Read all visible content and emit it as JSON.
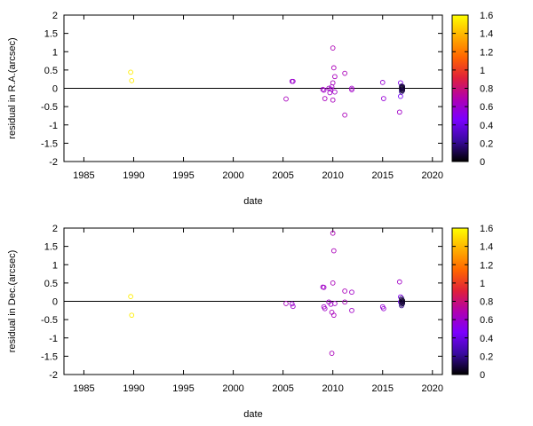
{
  "chart_data": [
    {
      "type": "scatter",
      "xlabel": "date",
      "ylabel": "residual in R.A.(arcsec)",
      "xlim": [
        1983,
        2021
      ],
      "ylim": [
        -2,
        2
      ],
      "xticks": [
        "1985",
        "1990",
        "1995",
        "2000",
        "2005",
        "2010",
        "2015",
        "2020"
      ],
      "yticks": [
        "-2",
        "-1.5",
        "-1",
        "-0.5",
        "0",
        "0.5",
        "1",
        "1.5",
        "2"
      ],
      "zero_line": true,
      "colorbar": {
        "min": 0,
        "max": 1.6,
        "ticks": [
          "0",
          "0.2",
          "0.4",
          "0.6",
          "0.8",
          "1",
          "1.2",
          "1.4",
          "1.6"
        ],
        "colormap": [
          "#000000",
          "#3a0aa0",
          "#7b00ff",
          "#b000b0",
          "#e0203a",
          "#ff6600",
          "#ffb000",
          "#ffff00"
        ]
      },
      "points": [
        {
          "x": 1989.7,
          "y": 0.44,
          "c": 1.55
        },
        {
          "x": 1989.8,
          "y": 0.21,
          "c": 1.55
        },
        {
          "x": 2005.3,
          "y": -0.29,
          "c": 0.65
        },
        {
          "x": 2005.9,
          "y": 0.19,
          "c": 0.6
        },
        {
          "x": 2006.0,
          "y": 0.19,
          "c": 0.6
        },
        {
          "x": 2009.0,
          "y": -0.03,
          "c": 0.62
        },
        {
          "x": 2009.1,
          "y": -0.05,
          "c": 0.62
        },
        {
          "x": 2009.2,
          "y": -0.28,
          "c": 0.65
        },
        {
          "x": 2009.6,
          "y": 0.0,
          "c": 0.62
        },
        {
          "x": 2009.7,
          "y": -0.12,
          "c": 0.62
        },
        {
          "x": 2009.8,
          "y": -0.02,
          "c": 0.62
        },
        {
          "x": 2009.9,
          "y": 0.04,
          "c": 0.62
        },
        {
          "x": 2010.0,
          "y": 1.1,
          "c": 0.67
        },
        {
          "x": 2010.0,
          "y": 0.15,
          "c": 0.65
        },
        {
          "x": 2010.0,
          "y": -0.32,
          "c": 0.65
        },
        {
          "x": 2010.1,
          "y": 0.56,
          "c": 0.66
        },
        {
          "x": 2010.2,
          "y": 0.32,
          "c": 0.65
        },
        {
          "x": 2010.2,
          "y": -0.1,
          "c": 0.62
        },
        {
          "x": 2011.2,
          "y": 0.41,
          "c": 0.66
        },
        {
          "x": 2011.2,
          "y": -0.73,
          "c": 0.66
        },
        {
          "x": 2011.9,
          "y": -0.04,
          "c": 0.62
        },
        {
          "x": 2011.9,
          "y": 0.0,
          "c": 0.62
        },
        {
          "x": 2015.0,
          "y": 0.16,
          "c": 0.58
        },
        {
          "x": 2015.1,
          "y": -0.28,
          "c": 0.58
        },
        {
          "x": 2016.7,
          "y": -0.65,
          "c": 0.62
        },
        {
          "x": 2016.8,
          "y": 0.15,
          "c": 0.5
        },
        {
          "x": 2016.8,
          "y": -0.22,
          "c": 0.45
        },
        {
          "x": 2016.9,
          "y": 0.06,
          "c": 0.15
        },
        {
          "x": 2016.9,
          "y": 0.03,
          "c": 0.1
        },
        {
          "x": 2016.9,
          "y": 0.0,
          "c": 0.05
        },
        {
          "x": 2016.9,
          "y": -0.03,
          "c": 0.08
        },
        {
          "x": 2016.9,
          "y": -0.06,
          "c": 0.12
        },
        {
          "x": 2016.9,
          "y": -0.1,
          "c": 0.2
        },
        {
          "x": 2017.0,
          "y": 0.02,
          "c": 0.05
        },
        {
          "x": 2017.0,
          "y": -0.02,
          "c": 0.04
        },
        {
          "x": 2017.0,
          "y": -0.06,
          "c": 0.08
        },
        {
          "x": 2017.0,
          "y": 0.05,
          "c": 0.1
        }
      ]
    },
    {
      "type": "scatter",
      "xlabel": "date",
      "ylabel": "residual in Dec.(arcsec)",
      "xlim": [
        1983,
        2021
      ],
      "ylim": [
        -2,
        2
      ],
      "xticks": [
        "1985",
        "1990",
        "1995",
        "2000",
        "2005",
        "2010",
        "2015",
        "2020"
      ],
      "yticks": [
        "-2",
        "-1.5",
        "-1",
        "-0.5",
        "0",
        "0.5",
        "1",
        "1.5",
        "2"
      ],
      "zero_line": true,
      "colorbar": {
        "min": 0,
        "max": 1.6,
        "ticks": [
          "0",
          "0.2",
          "0.4",
          "0.6",
          "0.8",
          "1",
          "1.2",
          "1.4",
          "1.6"
        ],
        "colormap": [
          "#000000",
          "#3a0aa0",
          "#7b00ff",
          "#b000b0",
          "#e0203a",
          "#ff6600",
          "#ffb000",
          "#ffff00"
        ]
      },
      "points": [
        {
          "x": 1989.7,
          "y": 0.13,
          "c": 1.55
        },
        {
          "x": 1989.8,
          "y": -0.38,
          "c": 1.55
        },
        {
          "x": 2005.3,
          "y": -0.06,
          "c": 0.65
        },
        {
          "x": 2005.9,
          "y": -0.07,
          "c": 0.6
        },
        {
          "x": 2006.0,
          "y": -0.14,
          "c": 0.6
        },
        {
          "x": 2009.0,
          "y": 0.39,
          "c": 0.62
        },
        {
          "x": 2009.1,
          "y": 0.38,
          "c": 0.62
        },
        {
          "x": 2009.1,
          "y": -0.15,
          "c": 0.62
        },
        {
          "x": 2009.2,
          "y": -0.2,
          "c": 0.62
        },
        {
          "x": 2009.6,
          "y": -0.02,
          "c": 0.62
        },
        {
          "x": 2009.8,
          "y": -0.08,
          "c": 0.62
        },
        {
          "x": 2009.9,
          "y": -0.3,
          "c": 0.65
        },
        {
          "x": 2009.9,
          "y": -1.42,
          "c": 0.66
        },
        {
          "x": 2010.0,
          "y": 1.86,
          "c": 0.67
        },
        {
          "x": 2010.0,
          "y": 0.5,
          "c": 0.66
        },
        {
          "x": 2010.1,
          "y": 1.38,
          "c": 0.66
        },
        {
          "x": 2010.1,
          "y": -0.38,
          "c": 0.65
        },
        {
          "x": 2010.2,
          "y": -0.06,
          "c": 0.62
        },
        {
          "x": 2011.2,
          "y": 0.28,
          "c": 0.66
        },
        {
          "x": 2011.2,
          "y": -0.02,
          "c": 0.66
        },
        {
          "x": 2011.9,
          "y": 0.25,
          "c": 0.62
        },
        {
          "x": 2011.9,
          "y": -0.25,
          "c": 0.62
        },
        {
          "x": 2015.0,
          "y": -0.15,
          "c": 0.58
        },
        {
          "x": 2015.1,
          "y": -0.2,
          "c": 0.58
        },
        {
          "x": 2016.7,
          "y": 0.53,
          "c": 0.62
        },
        {
          "x": 2016.8,
          "y": 0.12,
          "c": 0.5
        },
        {
          "x": 2016.8,
          "y": -0.02,
          "c": 0.45
        },
        {
          "x": 2016.9,
          "y": 0.08,
          "c": 0.15
        },
        {
          "x": 2016.9,
          "y": 0.04,
          "c": 0.1
        },
        {
          "x": 2016.9,
          "y": 0.0,
          "c": 0.05
        },
        {
          "x": 2016.9,
          "y": -0.04,
          "c": 0.08
        },
        {
          "x": 2016.9,
          "y": -0.08,
          "c": 0.12
        },
        {
          "x": 2016.9,
          "y": -0.12,
          "c": 0.2
        },
        {
          "x": 2017.0,
          "y": 0.02,
          "c": 0.05
        },
        {
          "x": 2017.0,
          "y": -0.02,
          "c": 0.04
        },
        {
          "x": 2017.0,
          "y": -0.06,
          "c": 0.08
        }
      ]
    }
  ]
}
